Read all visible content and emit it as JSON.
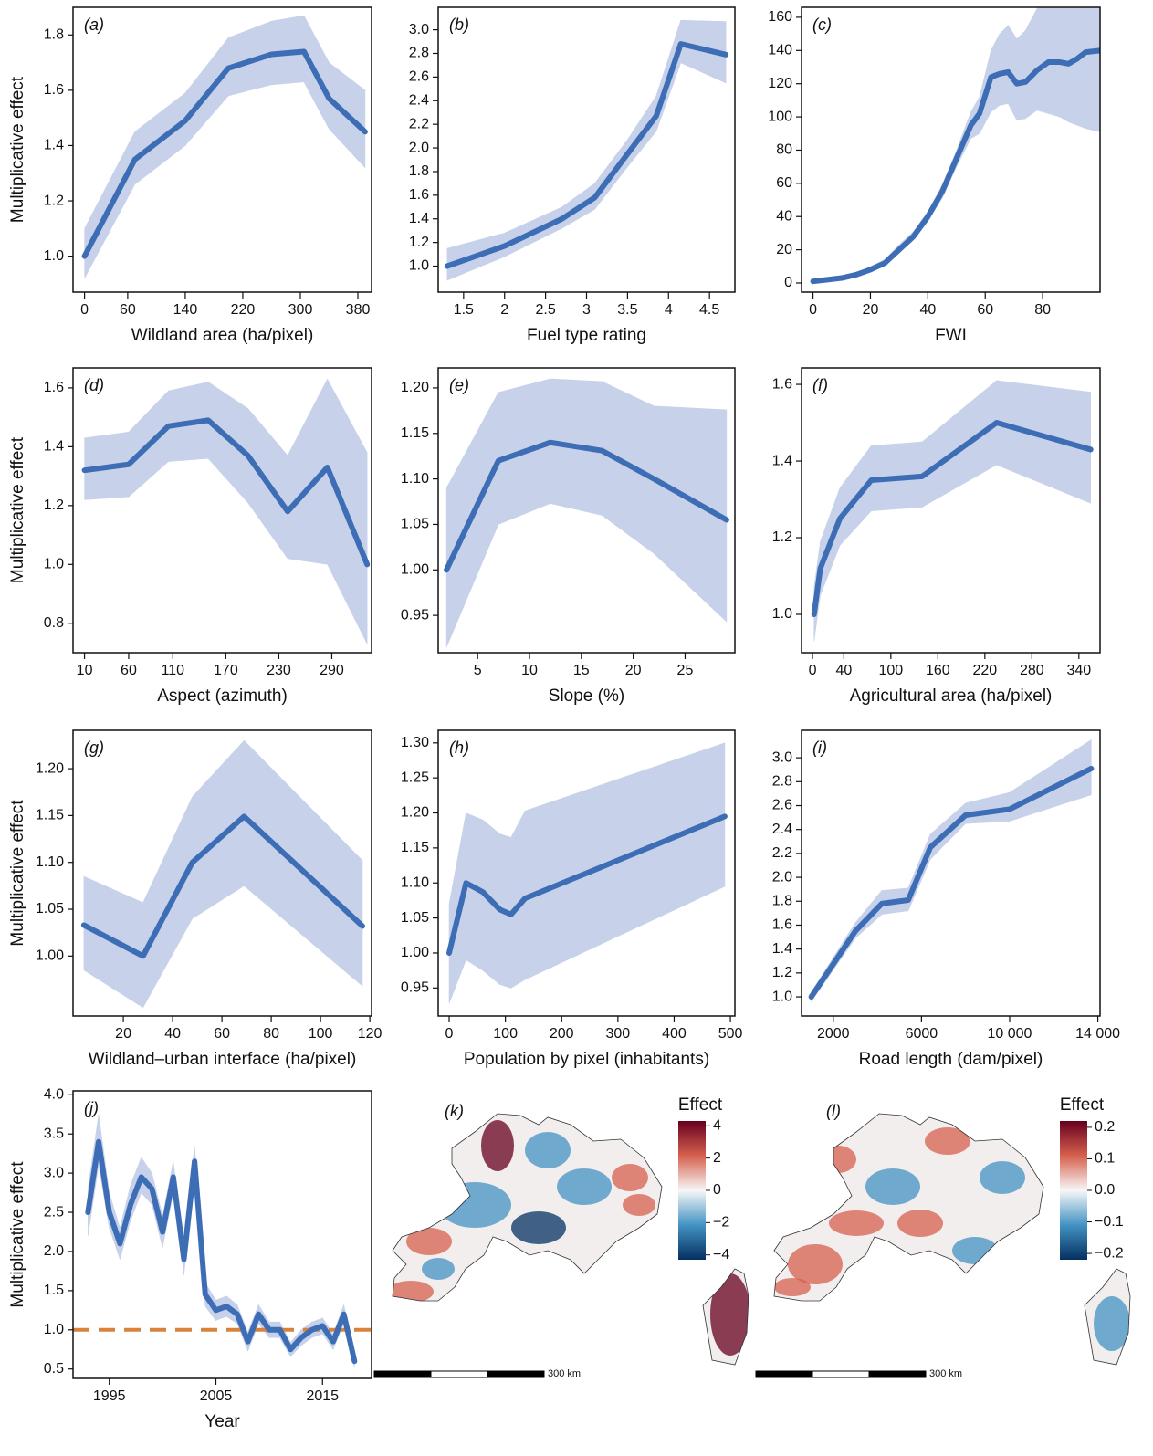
{
  "chart_data": [
    {
      "type": "line",
      "label": "(a)",
      "ylabel": "Multiplicative effect",
      "xlabel": "Wildland area (ha/pixel)",
      "color": "#3d6db5",
      "band_color": "#c7d2ea",
      "x": [
        0,
        70,
        140,
        200,
        260,
        305,
        340,
        390
      ],
      "values": [
        1.0,
        1.35,
        1.49,
        1.68,
        1.73,
        1.74,
        1.57,
        1.45
      ],
      "lower": [
        0.92,
        1.26,
        1.4,
        1.58,
        1.62,
        1.63,
        1.46,
        1.32
      ],
      "upper": [
        1.1,
        1.45,
        1.59,
        1.79,
        1.85,
        1.87,
        1.7,
        1.6
      ],
      "xlim": [
        -16,
        399
      ],
      "ylim": [
        0.87,
        1.9
      ],
      "xticks": [
        0,
        60,
        140,
        220,
        300,
        380
      ],
      "yticks": [
        {
          "value": 1.0,
          "label": "1.0"
        },
        1.2,
        1.4,
        1.6,
        1.8
      ]
    },
    {
      "type": "line",
      "label": "(b)",
      "xlabel": "Fuel type rating",
      "color": "#3d6db5",
      "band_color": "#c7d2ea",
      "x": [
        1.3,
        2.0,
        2.7,
        3.1,
        3.5,
        3.85,
        4.15,
        4.7
      ],
      "values": [
        1.0,
        1.17,
        1.4,
        1.58,
        1.95,
        2.27,
        2.88,
        2.79
      ],
      "lower": [
        0.88,
        1.08,
        1.32,
        1.48,
        1.84,
        2.14,
        2.72,
        2.55
      ],
      "upper": [
        1.15,
        1.28,
        1.5,
        1.7,
        2.07,
        2.44,
        3.08,
        3.07
      ],
      "xlim": [
        1.19,
        4.81
      ],
      "ylim": [
        0.78,
        3.19
      ],
      "xticks": [
        1.5,
        2,
        2.5,
        3,
        3.5,
        4,
        4.5
      ],
      "yticks": [
        {
          "value": 1.0,
          "label": "1.0"
        },
        1.2,
        1.4,
        1.6,
        1.8,
        {
          "value": 2.0,
          "label": "2.0"
        },
        2.2,
        2.4,
        2.6,
        2.8,
        {
          "value": 3.0,
          "label": "3.0"
        }
      ]
    },
    {
      "type": "line",
      "label": "(c)",
      "xlabel": "FWI",
      "color": "#3d6db5",
      "band_color": "#c7d2ea",
      "x": [
        0,
        5,
        10,
        15,
        20,
        25,
        30,
        35,
        40,
        45,
        50,
        55,
        58,
        62,
        65,
        68,
        71,
        74,
        78,
        82,
        86,
        89,
        92,
        95,
        100
      ],
      "values": [
        1,
        2,
        3,
        5,
        8,
        12,
        20,
        28,
        40,
        55,
        75,
        95,
        102,
        124,
        126,
        127,
        120,
        121,
        128,
        133,
        133,
        132,
        135,
        139,
        140
      ],
      "lower": [
        0,
        1,
        2,
        4,
        7,
        11,
        18,
        26,
        37,
        51,
        70,
        87,
        90,
        103,
        107,
        108,
        98,
        99,
        104,
        102,
        100,
        97,
        95,
        93,
        91
      ],
      "upper": [
        2,
        3,
        4,
        6,
        10,
        14,
        23,
        31,
        43,
        59,
        80,
        103,
        112,
        140,
        150,
        155,
        147,
        152,
        165,
        175,
        180,
        185,
        190,
        195,
        200
      ],
      "xlim": [
        -4,
        100
      ],
      "ylim": [
        -5.5,
        166
      ],
      "xticks": [
        0,
        20,
        40,
        60,
        80
      ],
      "yticks": [
        0,
        20,
        40,
        60,
        80,
        100,
        120,
        140,
        160
      ]
    },
    {
      "type": "line",
      "label": "(d)",
      "ylabel": "Multiplicative effect",
      "xlabel": "Aspect (azimuth)",
      "color": "#3d6db5",
      "band_color": "#c7d2ea",
      "x": [
        10,
        60,
        105,
        150,
        195,
        240,
        285,
        330
      ],
      "values": [
        1.32,
        1.34,
        1.47,
        1.49,
        1.37,
        1.18,
        1.33,
        1.0
      ],
      "lower": [
        1.22,
        1.23,
        1.35,
        1.36,
        1.21,
        1.02,
        1.0,
        0.73
      ],
      "upper": [
        1.43,
        1.45,
        1.59,
        1.62,
        1.53,
        1.37,
        1.63,
        1.38
      ],
      "xlim": [
        -3,
        335
      ],
      "ylim": [
        0.7,
        1.668
      ],
      "xticks": [
        10,
        60,
        110,
        170,
        230,
        290
      ],
      "yticks": [
        0.8,
        {
          "value": 1.0,
          "label": "1.0"
        },
        1.2,
        1.4,
        1.6
      ]
    },
    {
      "type": "line",
      "label": "(e)",
      "xlabel": "Slope (%)",
      "color": "#3d6db5",
      "band_color": "#c7d2ea",
      "x": [
        2,
        7,
        12,
        17,
        22,
        29
      ],
      "values": [
        1.0,
        1.12,
        1.14,
        1.131,
        1.1,
        1.055
      ],
      "lower": [
        0.915,
        1.05,
        1.073,
        1.06,
        1.018,
        0.943
      ],
      "upper": [
        1.09,
        1.195,
        1.21,
        1.207,
        1.18,
        1.176
      ],
      "xlim": [
        1.2,
        29.8
      ],
      "ylim": [
        0.909,
        1.222
      ],
      "xticks": [
        5,
        10,
        15,
        20,
        25
      ],
      "yticks": [
        0.95,
        {
          "value": 1.0,
          "label": "1.00"
        },
        1.05,
        {
          "value": 1.1,
          "label": "1.10"
        },
        1.15,
        {
          "value": 1.2,
          "label": "1.20"
        }
      ]
    },
    {
      "type": "line",
      "label": "(f)",
      "xlabel": "Agricultural area (ha/pixel)",
      "color": "#3d6db5",
      "band_color": "#c7d2ea",
      "x": [
        2,
        10,
        35,
        75,
        140,
        235,
        355
      ],
      "values": [
        1.0,
        1.12,
        1.25,
        1.35,
        1.36,
        1.5,
        1.43
      ],
      "lower": [
        0.93,
        1.05,
        1.18,
        1.27,
        1.28,
        1.39,
        1.29
      ],
      "upper": [
        1.07,
        1.19,
        1.33,
        1.44,
        1.45,
        1.61,
        1.58
      ],
      "xlim": [
        -14,
        367
      ],
      "ylim": [
        0.9,
        1.643
      ],
      "xticks": [
        0,
        40,
        100,
        160,
        220,
        280,
        340
      ],
      "yticks": [
        {
          "value": 1.0,
          "label": "1.0"
        },
        1.2,
        1.4,
        1.6
      ]
    },
    {
      "type": "line",
      "label": "(g)",
      "ylabel": "Multiplicative effect",
      "xlabel": "Wildland–urban interface (ha/pixel)",
      "color": "#3d6db5",
      "band_color": "#c7d2ea",
      "x": [
        4,
        28,
        48,
        69,
        117
      ],
      "values": [
        1.033,
        1.0,
        1.1,
        1.149,
        1.032
      ],
      "lower": [
        0.985,
        0.945,
        1.04,
        1.075,
        0.968
      ],
      "upper": [
        1.085,
        1.057,
        1.17,
        1.23,
        1.102
      ],
      "xlim": [
        -0.4,
        120.7
      ],
      "ylim": [
        0.936,
        1.241
      ],
      "xticks": [
        20,
        40,
        60,
        80,
        100,
        120
      ],
      "yticks": [
        {
          "value": 1.0,
          "label": "1.00"
        },
        1.05,
        {
          "value": 1.1,
          "label": "1.10"
        },
        1.15,
        {
          "value": 1.2,
          "label": "1.20"
        }
      ]
    },
    {
      "type": "line",
      "label": "(h)",
      "xlabel": "Population by pixel (inhabitants)",
      "color": "#3d6db5",
      "band_color": "#c7d2ea",
      "x": [
        0,
        30,
        60,
        90,
        110,
        135,
        490
      ],
      "values": [
        1.0,
        1.1,
        1.087,
        1.062,
        1.055,
        1.078,
        1.195
      ],
      "lower": [
        0.928,
        0.99,
        0.975,
        0.955,
        0.95,
        0.962,
        1.095
      ],
      "upper": [
        1.07,
        1.2,
        1.19,
        1.17,
        1.165,
        1.203,
        1.3
      ],
      "xlim": [
        -19.5,
        508
      ],
      "ylim": [
        0.91,
        1.318
      ],
      "xticks": [
        0,
        100,
        200,
        300,
        400,
        500
      ],
      "yticks": [
        0.95,
        {
          "value": 1.0,
          "label": "1.00"
        },
        1.05,
        {
          "value": 1.1,
          "label": "1.10"
        },
        1.15,
        {
          "value": 1.2,
          "label": "1.20"
        },
        1.25,
        {
          "value": 1.3,
          "label": "1.30"
        }
      ]
    },
    {
      "type": "line",
      "label": "(i)",
      "xlabel": "Road length (dam/pixel)",
      "color": "#3d6db5",
      "band_color": "#c7d2ea",
      "x": [
        1000,
        3000,
        4200,
        5400,
        6400,
        8000,
        10000,
        13700
      ],
      "values": [
        1.0,
        1.55,
        1.78,
        1.81,
        2.25,
        2.52,
        2.57,
        2.91
      ],
      "lower": [
        0.96,
        1.49,
        1.69,
        1.72,
        2.15,
        2.45,
        2.47,
        2.69
      ],
      "upper": [
        1.04,
        1.62,
        1.89,
        1.91,
        2.36,
        2.62,
        2.71,
        3.15
      ],
      "xlim": [
        560,
        14100
      ],
      "ylim": [
        0.84,
        3.23
      ],
      "xticks": [
        2000,
        6000,
        {
          "value": 10000,
          "label": "10 000"
        },
        {
          "value": 14000,
          "label": "14 000"
        }
      ],
      "yticks": [
        {
          "value": 1.0,
          "label": "1.0"
        },
        1.2,
        1.4,
        1.6,
        1.8,
        {
          "value": 2.0,
          "label": "2.0"
        },
        2.2,
        2.4,
        2.6,
        2.8,
        {
          "value": 3.0,
          "label": "3.0"
        }
      ]
    },
    {
      "type": "line",
      "label": "(j)",
      "ylabel": "Multiplicative effect",
      "xlabel": "Year",
      "color": "#3d6db5",
      "band_color": "#c7d2ea",
      "x": [
        1993,
        1994,
        1995,
        1996,
        1997,
        1998,
        1999,
        2000,
        2001,
        2002,
        2003,
        2004,
        2005,
        2006,
        2007,
        2008,
        2009,
        2010,
        2011,
        2012,
        2013,
        2014,
        2015,
        2016,
        2017,
        2018
      ],
      "values": [
        2.5,
        3.4,
        2.5,
        2.1,
        2.6,
        2.95,
        2.8,
        2.25,
        2.95,
        1.9,
        3.15,
        1.45,
        1.25,
        1.3,
        1.2,
        0.85,
        1.2,
        1.0,
        1.0,
        0.75,
        0.9,
        1.0,
        1.05,
        0.85,
        1.2,
        0.6
      ],
      "lower": [
        2.2,
        3.1,
        2.3,
        1.9,
        2.4,
        2.75,
        2.6,
        2.05,
        2.75,
        1.7,
        2.95,
        1.3,
        1.12,
        1.17,
        1.08,
        0.73,
        1.08,
        0.9,
        0.9,
        0.66,
        0.8,
        0.9,
        0.95,
        0.75,
        1.08,
        0.52
      ],
      "upper": [
        2.8,
        3.75,
        2.75,
        2.3,
        2.85,
        3.2,
        3.0,
        2.45,
        3.15,
        2.1,
        3.35,
        1.6,
        1.38,
        1.43,
        1.32,
        0.97,
        1.32,
        1.1,
        1.1,
        0.84,
        1.0,
        1.1,
        1.15,
        0.95,
        1.32,
        0.68
      ],
      "reference_line": 1,
      "reference_color": "#d9823b",
      "xlim": [
        1991.6,
        2019.6
      ],
      "ylim": [
        0.38,
        4.05
      ],
      "xticks": [
        1995,
        2005,
        2015
      ],
      "yticks": [
        0.5,
        {
          "value": 1.0,
          "label": "1.0"
        },
        1.5,
        {
          "value": 2.0,
          "label": "2.0"
        },
        2.5,
        {
          "value": 3.0,
          "label": "3.0"
        },
        3.5,
        {
          "value": 4.0,
          "label": "4.0"
        }
      ]
    },
    {
      "type": "map",
      "label": "(k)",
      "colorbar_title": "Effect",
      "scale_label": "300 km",
      "colors": [
        "#67001f",
        "#d6604d",
        "#f7f7f7",
        "#4393c3",
        "#053061"
      ],
      "clim": [
        -4.3,
        4.3
      ],
      "cticks": [
        4,
        2,
        0,
        {
          "value": -2,
          "label": "−2"
        },
        {
          "value": -4,
          "label": "−4"
        }
      ]
    },
    {
      "type": "map",
      "label": "(l)",
      "colorbar_title": "Effect",
      "scale_label": "300 km",
      "colors": [
        "#67001f",
        "#d6604d",
        "#f7f7f7",
        "#4393c3",
        "#053061"
      ],
      "clim": [
        -0.22,
        0.22
      ],
      "cticks": [
        0.2,
        0.1,
        {
          "value": 0.0,
          "label": "0.0"
        },
        {
          "value": -0.1,
          "label": "−0.1"
        },
        {
          "value": -0.2,
          "label": "−0.2"
        }
      ]
    }
  ]
}
